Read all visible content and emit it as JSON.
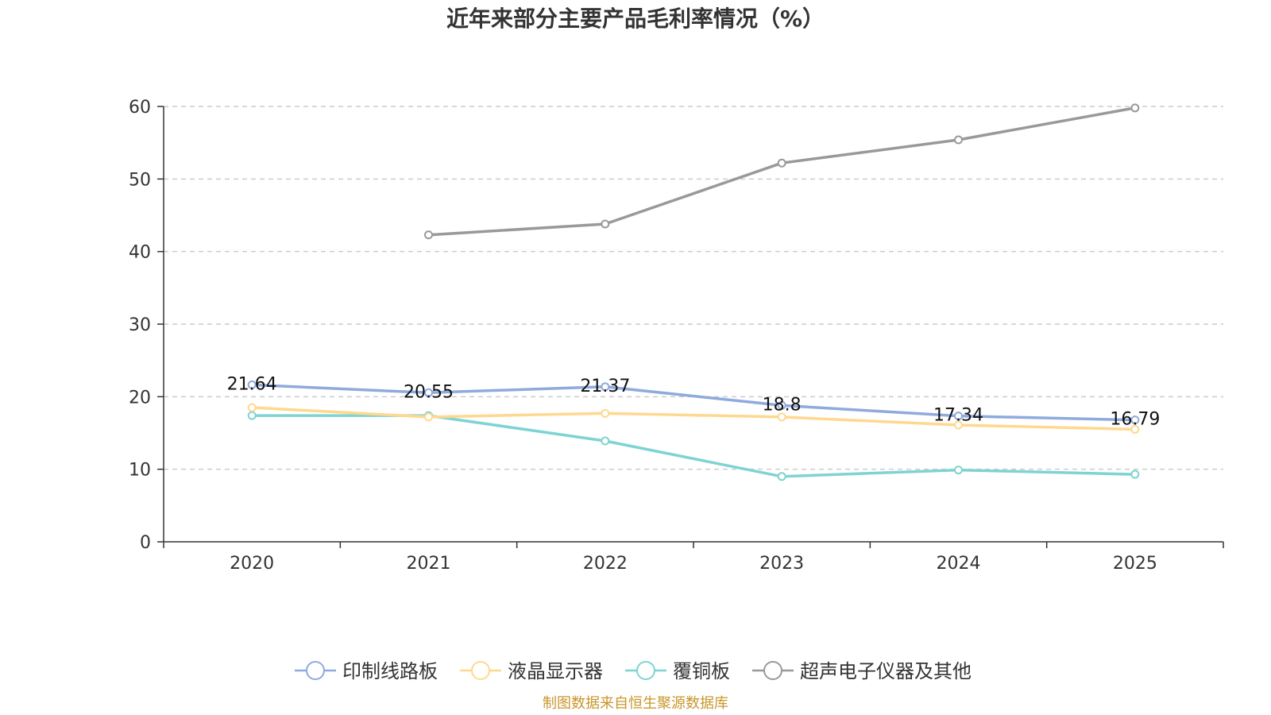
{
  "chart_data": {
    "type": "line",
    "title": "近年来部分主要产品毛利率情况（%）",
    "xlabel": "",
    "ylabel": "",
    "categories": [
      "2020",
      "2021",
      "2022",
      "2023",
      "2024",
      "2025"
    ],
    "ylim": [
      0,
      60
    ],
    "yticks": [
      0,
      10,
      20,
      30,
      40,
      50,
      60
    ],
    "grid": true,
    "legend_position": "bottom",
    "series": [
      {
        "name": "印制线路板",
        "color": "#8FAADC",
        "values": [
          21.64,
          20.55,
          21.37,
          18.8,
          17.34,
          16.79
        ],
        "labels": [
          "21.64",
          "20.55",
          "21.37",
          "18.8",
          "17.34",
          "16.79"
        ]
      },
      {
        "name": "液晶显示器",
        "color": "#FFD88F",
        "values": [
          18.5,
          17.2,
          17.7,
          17.2,
          16.1,
          15.5
        ]
      },
      {
        "name": "覆铜板",
        "color": "#7FD3D3",
        "values": [
          17.4,
          17.4,
          13.9,
          9.0,
          9.9,
          9.3
        ]
      },
      {
        "name": "超声电子仪器及其他",
        "color": "#999999",
        "values": [
          null,
          42.3,
          43.8,
          52.2,
          55.4,
          59.8
        ]
      }
    ]
  },
  "source": {
    "text": "制图数据来自恒生聚源数据库",
    "color": "#C8962B"
  }
}
